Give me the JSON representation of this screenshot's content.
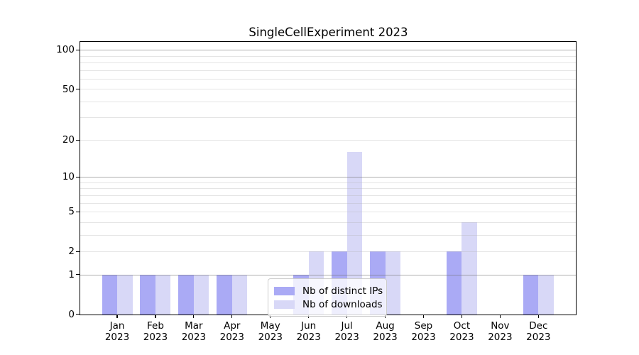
{
  "chart_data": {
    "type": "bar",
    "title": "SingleCellExperiment 2023",
    "months": [
      "Jan",
      "Feb",
      "Mar",
      "Apr",
      "May",
      "Jun",
      "Jul",
      "Aug",
      "Sep",
      "Oct",
      "Nov",
      "Dec"
    ],
    "year": "2023",
    "series": [
      {
        "name": "Nb of distinct IPs",
        "color": "#aaaaf5",
        "values": [
          1,
          1,
          1,
          1,
          0,
          1,
          2,
          2,
          0,
          2,
          0,
          1
        ]
      },
      {
        "name": "Nb of downloads",
        "color": "#d8d8f7",
        "values": [
          1,
          1,
          1,
          1,
          0,
          2,
          16,
          2,
          0,
          4,
          0,
          1
        ]
      }
    ],
    "y_axis": {
      "scale": "log1p",
      "tick_labels": [
        0,
        1,
        2,
        5,
        10,
        20,
        50,
        100
      ],
      "major_gridlines": [
        1,
        10,
        100
      ],
      "minor_gridlines": [
        2,
        3,
        4,
        5,
        6,
        7,
        8,
        9,
        20,
        30,
        40,
        50,
        60,
        70,
        80,
        90
      ],
      "max": 115,
      "min": 0
    },
    "legend": {
      "position": "lower center-left"
    },
    "grid": true
  }
}
